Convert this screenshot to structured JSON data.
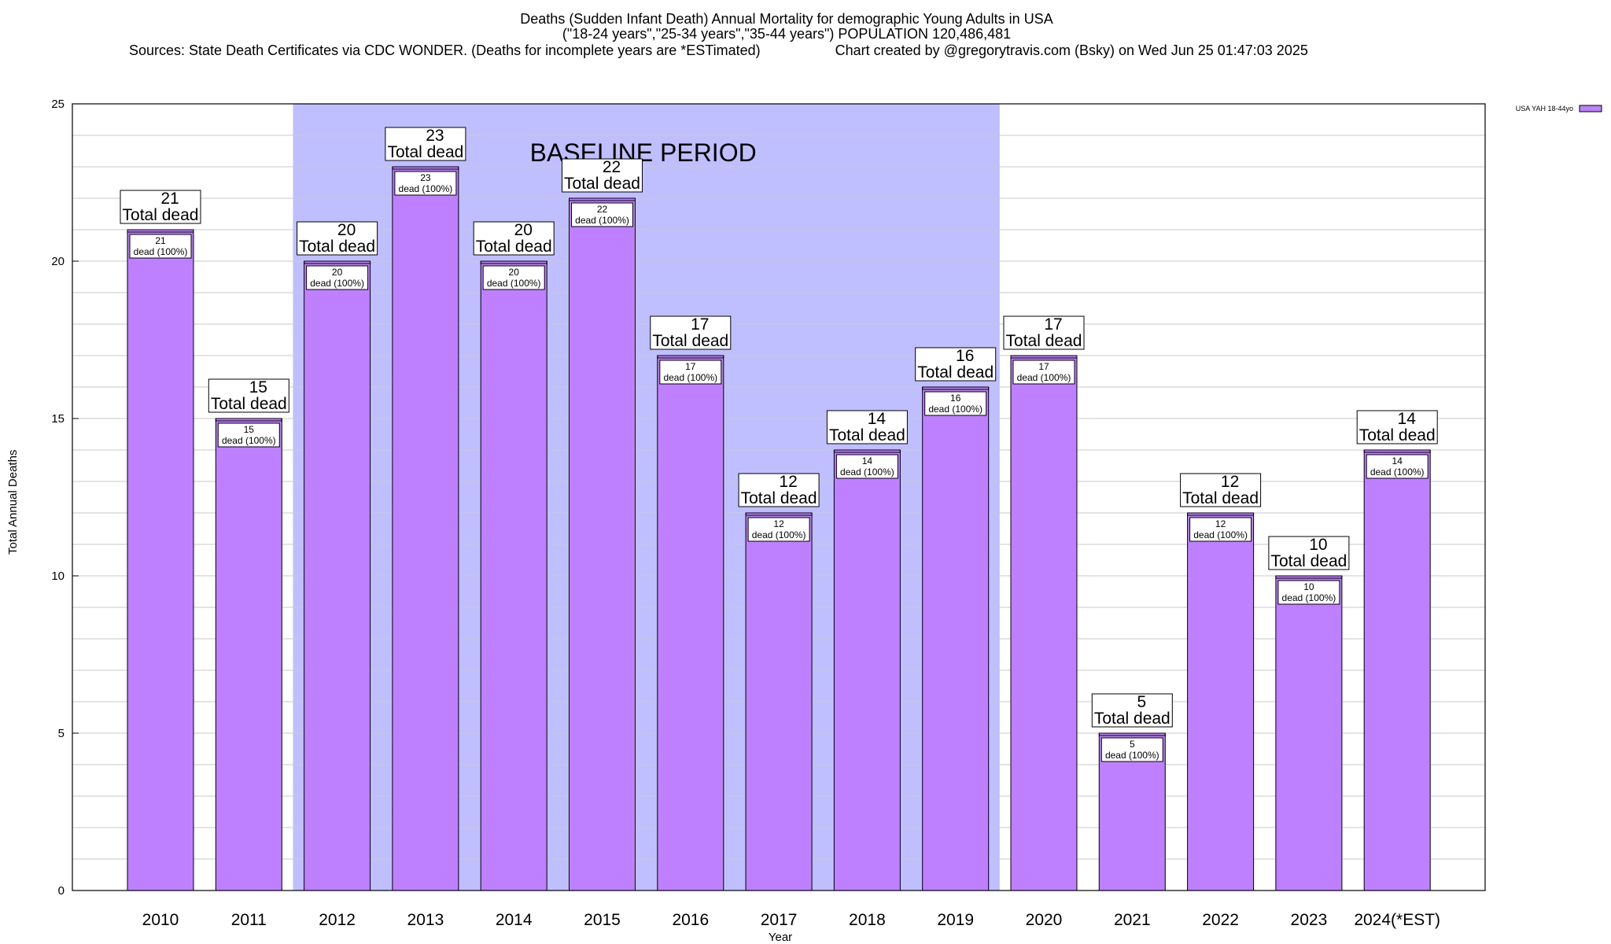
{
  "header": {
    "title": "Deaths (Sudden Infant Death) Annual Mortality for demographic Young Adults in USA",
    "subtitle": "(\"18-24 years\",\"25-34 years\",\"35-44 years\") POPULATION 120,486,481",
    "sources": "Sources: State Death Certificates via CDC WONDER. (Deaths for incomplete years are *ESTimated)",
    "credit": "Chart created by @gregorytravis.com (Bsky) on Wed Jun 25 01:47:03 2025"
  },
  "chart_data": {
    "type": "bar",
    "categories": [
      "2010",
      "2011",
      "2012",
      "2013",
      "2014",
      "2015",
      "2016",
      "2017",
      "2018",
      "2019",
      "2020",
      "2021",
      "2022",
      "2023",
      "2024(*EST)"
    ],
    "series": [
      {
        "name": "USA YAH 18-44yo",
        "values": [
          21,
          15,
          20,
          23,
          20,
          22,
          17,
          12,
          14,
          16,
          17,
          5,
          12,
          10,
          14
        ],
        "color": "#bf80ff"
      }
    ],
    "xlabel": "Year",
    "ylabel": "Total Annual Deaths",
    "ylim": [
      0,
      25
    ],
    "yticks": [
      0,
      5,
      10,
      15,
      20,
      25
    ],
    "grid": true,
    "legend": "top-right",
    "baseline_period": {
      "label": "BASELINE PERIOD",
      "from": "2012",
      "to": "2019",
      "color": "#bfbfff"
    },
    "top_label_suffix": "Total dead",
    "inner_label_suffix": "dead (100%)"
  }
}
